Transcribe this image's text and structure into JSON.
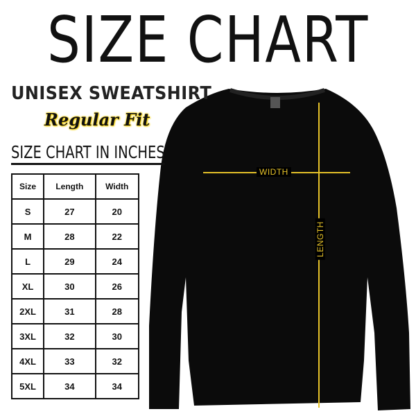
{
  "title": "SIZE CHART",
  "product": "UNISEX SWEATSHIRT",
  "fit": "Regular Fit",
  "subtitle": "SIZE CHART IN INCHES",
  "table": {
    "headers": [
      "Size",
      "Length",
      "Width"
    ],
    "rows": [
      [
        "S",
        "27",
        "20"
      ],
      [
        "M",
        "28",
        "22"
      ],
      [
        "L",
        "29",
        "24"
      ],
      [
        "XL",
        "30",
        "26"
      ],
      [
        "2XL",
        "31",
        "28"
      ],
      [
        "3XL",
        "32",
        "30"
      ],
      [
        "4XL",
        "33",
        "32"
      ],
      [
        "5XL",
        "34",
        "34"
      ]
    ]
  },
  "measure": {
    "width_label": "WIDTH",
    "length_label": "LENGTH",
    "line_color": "#e6c229"
  },
  "garment_color": "#0b0b0b"
}
